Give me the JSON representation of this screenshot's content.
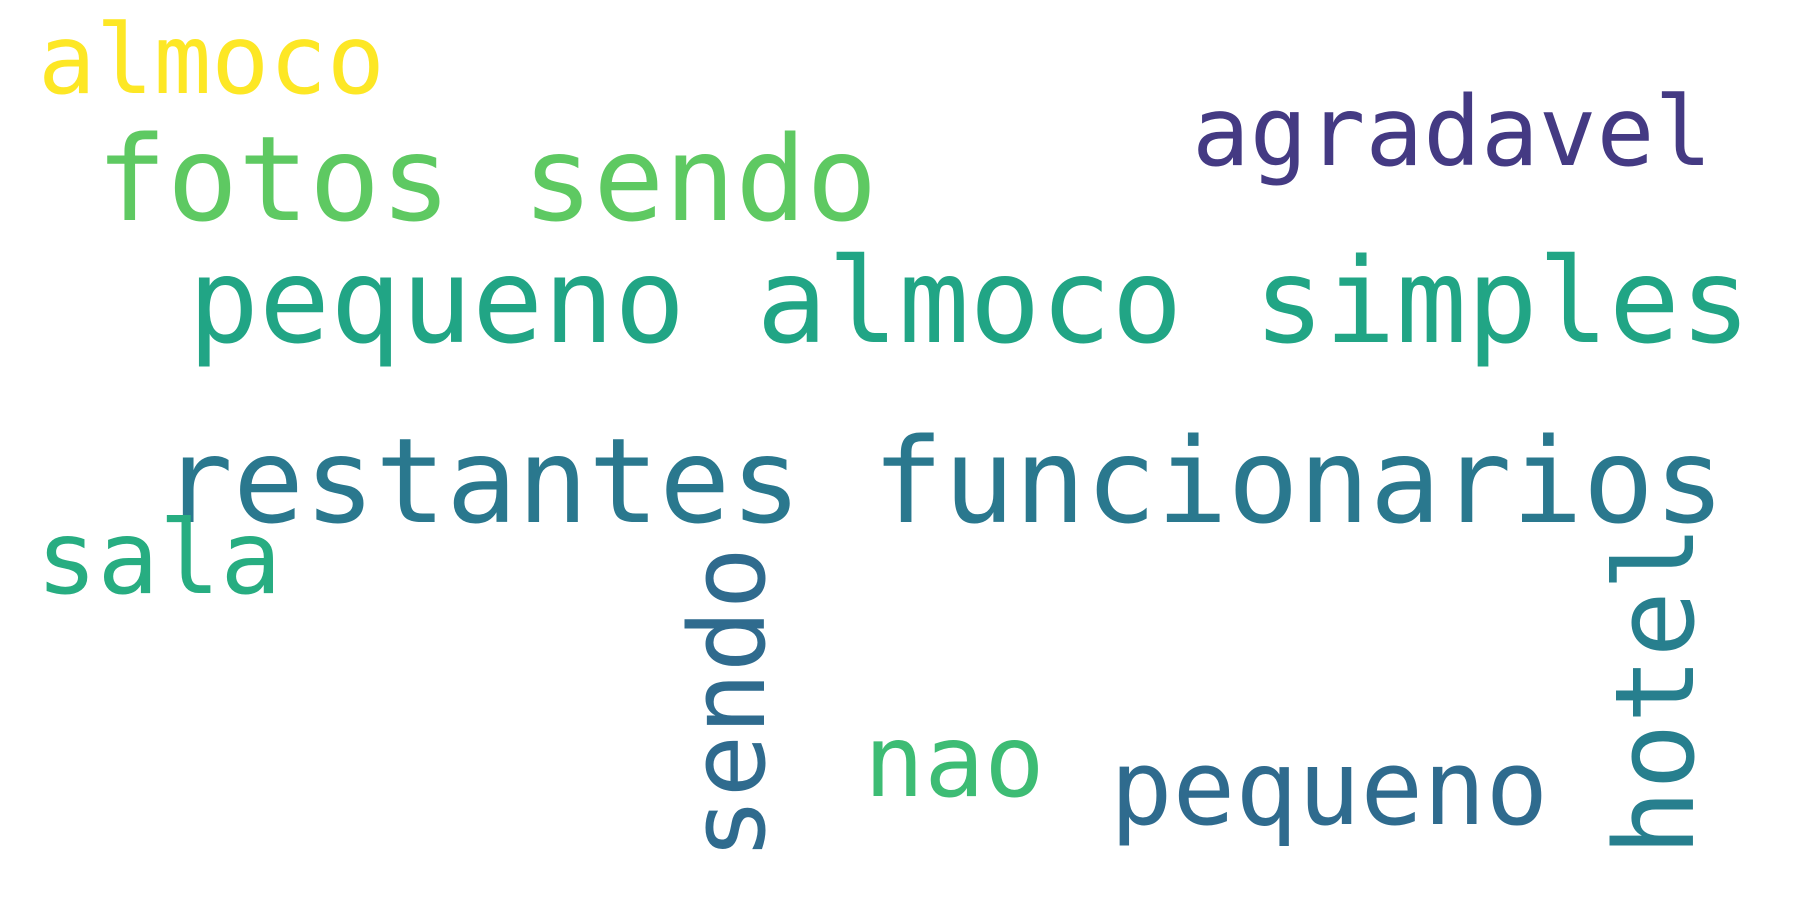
{
  "words": [
    {
      "text": "almoco",
      "color": "#fde725"
    },
    {
      "text": "agradavel",
      "color": "#443a83"
    },
    {
      "text": "fotos sendo",
      "color": "#5ec962"
    },
    {
      "text": "pequeno almoco simples",
      "color": "#21a585"
    },
    {
      "text": "restantes funcionarios",
      "color": "#2a788e"
    },
    {
      "text": "sala",
      "color": "#27ad81"
    },
    {
      "text": "nao",
      "color": "#3dbc74"
    },
    {
      "text": "pequeno",
      "color": "#2f6b8e"
    },
    {
      "text": "sendo",
      "color": "#2f6b8e"
    },
    {
      "text": "hotel",
      "color": "#277f8e"
    }
  ]
}
